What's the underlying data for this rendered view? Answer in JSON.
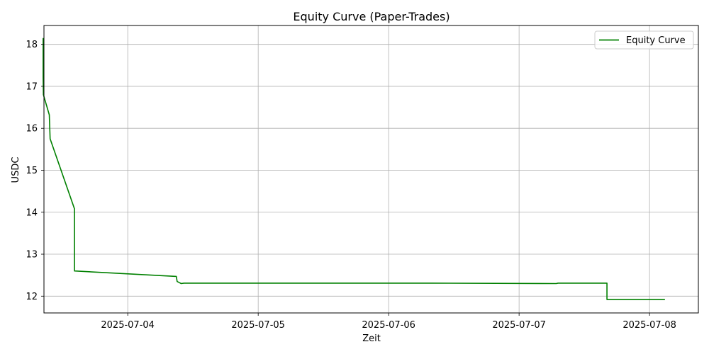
{
  "chart_data": {
    "type": "line",
    "title": "Equity Curve (Paper-Trades)",
    "xlabel": "Zeit",
    "ylabel": "USDC",
    "x_type": "datetime",
    "xlim": [
      "2025-07-03T08:35:00",
      "2025-07-08T08:59:00"
    ],
    "ylim": [
      11.6,
      18.45
    ],
    "x_ticks": [
      "2025-07-04",
      "2025-07-05",
      "2025-07-06",
      "2025-07-07",
      "2025-07-08"
    ],
    "y_ticks": [
      12,
      13,
      14,
      15,
      16,
      17,
      18
    ],
    "grid": true,
    "legend_position": "upper right",
    "series": [
      {
        "name": "Equity Curve",
        "color": "#008000",
        "points": [
          [
            "2025-07-03T08:26:00",
            18.15
          ],
          [
            "2025-07-03T08:26:00",
            17.2
          ],
          [
            "2025-07-03T08:29:00",
            16.8
          ],
          [
            "2025-07-03T09:34:00",
            16.32
          ],
          [
            "2025-07-03T09:43:00",
            15.75
          ],
          [
            "2025-07-03T14:12:00",
            14.08
          ],
          [
            "2025-07-03T14:12:00",
            12.6
          ],
          [
            "2025-07-04T08:56:00",
            12.47
          ],
          [
            "2025-07-04T09:05:00",
            12.35
          ],
          [
            "2025-07-04T09:50:00",
            12.3
          ],
          [
            "2025-07-04T10:20:00",
            12.31
          ],
          [
            "2025-07-05T09:00:00",
            12.31
          ],
          [
            "2025-07-06T08:00:00",
            12.31
          ],
          [
            "2025-07-07T06:50:00",
            12.3
          ],
          [
            "2025-07-07T07:10:00",
            12.31
          ],
          [
            "2025-07-07T16:10:00",
            12.31
          ],
          [
            "2025-07-07T16:10:00",
            11.92
          ],
          [
            "2025-07-08T02:50:00",
            11.92
          ]
        ]
      }
    ]
  }
}
